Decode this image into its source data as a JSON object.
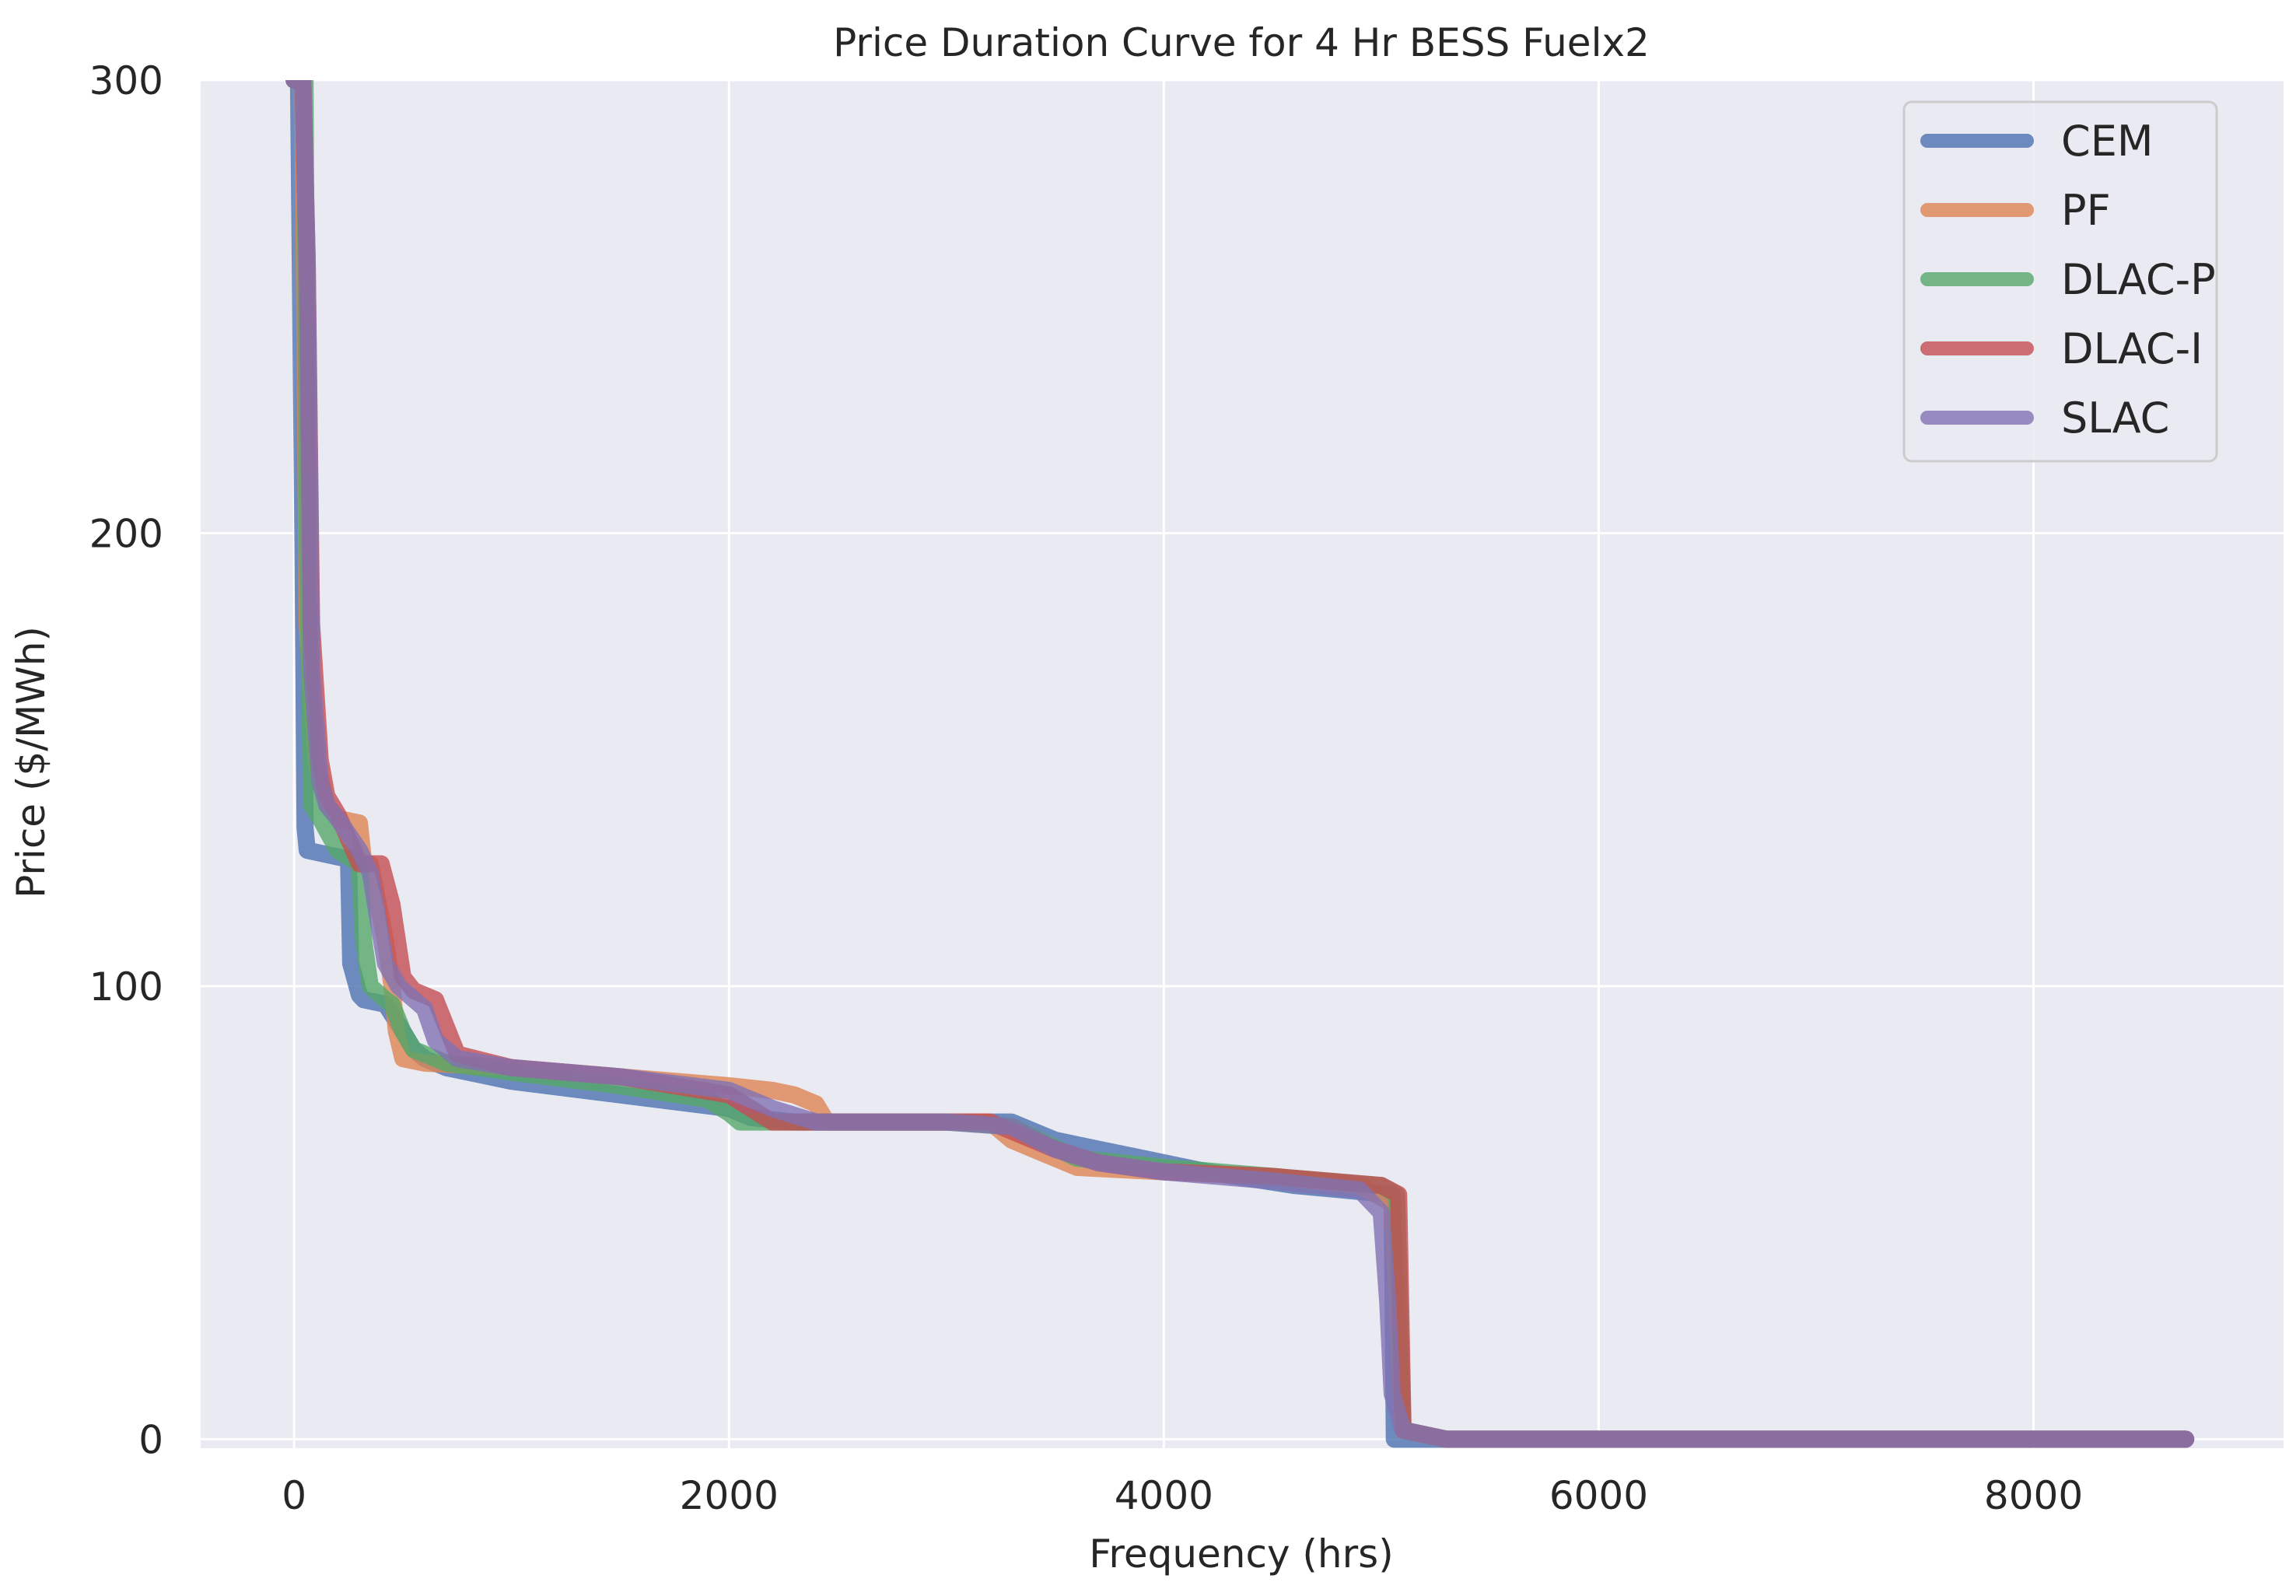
{
  "chart_data": {
    "type": "line",
    "title": "Price Duration Curve for 4 Hr BESS Fuelx2",
    "xlabel": "Frequency (hrs)",
    "ylabel": "Price ($/MWh)",
    "xlim": [
      -430,
      9150
    ],
    "ylim": [
      -2,
      300
    ],
    "xticks": [
      0,
      2000,
      4000,
      6000,
      8000
    ],
    "yticks": [
      0,
      100,
      200,
      300
    ],
    "xtick_labels": [
      "0",
      "2000",
      "4000",
      "6000",
      "8000"
    ],
    "ytick_labels": [
      "0",
      "100",
      "200",
      "300"
    ],
    "grid": true,
    "legend": "top-right",
    "series": [
      {
        "name": "CEM",
        "color": "#4c72b0",
        "x": [
          0,
          20,
          40,
          50,
          60,
          250,
          260,
          300,
          320,
          420,
          500,
          550,
          600,
          700,
          1000,
          1500,
          2000,
          2100,
          2300,
          2500,
          3000,
          3300,
          3500,
          3700,
          3900,
          4200,
          4600,
          5050,
          5060,
          5070,
          5100,
          5300,
          8700
        ],
        "values": [
          300,
          300,
          200,
          135,
          130,
          128,
          105,
          98,
          97,
          96,
          90,
          86,
          84,
          82,
          79,
          76,
          73,
          71,
          70,
          70,
          70,
          70,
          66,
          64,
          62,
          59,
          56,
          54,
          0,
          0,
          0,
          0,
          0
        ]
      },
      {
        "name": "PF",
        "color": "#dd8452",
        "x": [
          0,
          40,
          60,
          100,
          150,
          200,
          300,
          320,
          350,
          420,
          450,
          470,
          500,
          600,
          1000,
          1500,
          2000,
          2200,
          2300,
          2400,
          2450,
          3000,
          3200,
          3300,
          3400,
          3600,
          4000,
          4500,
          4900,
          5050,
          5100,
          5300,
          8700
        ],
        "values": [
          300,
          300,
          180,
          150,
          140,
          137,
          136,
          127,
          127,
          110,
          100,
          90,
          84,
          83,
          82,
          80,
          78,
          77,
          76,
          74,
          70,
          70,
          70,
          66,
          64,
          60,
          59,
          58,
          56,
          52,
          2,
          0,
          0
        ]
      },
      {
        "name": "DLAC-P",
        "color": "#55a868",
        "x": [
          0,
          50,
          60,
          80,
          120,
          200,
          300,
          320,
          350,
          420,
          450,
          500,
          550,
          700,
          1000,
          1500,
          1900,
          2000,
          2050,
          2300,
          3000,
          3300,
          3600,
          4000,
          4500,
          5000,
          5070,
          5100,
          5300,
          8700
        ],
        "values": [
          300,
          300,
          200,
          140,
          137,
          130,
          127,
          110,
          100,
          97,
          96,
          90,
          86,
          83,
          81,
          78,
          75,
          72,
          70,
          70,
          70,
          69,
          62,
          60,
          58,
          56,
          54,
          2,
          0,
          0
        ]
      },
      {
        "name": "DLAC-I",
        "color": "#c44e52",
        "x": [
          0,
          40,
          60,
          80,
          120,
          150,
          200,
          300,
          400,
          450,
          500,
          550,
          600,
          650,
          750,
          1000,
          1500,
          2000,
          2200,
          2400,
          3000,
          3200,
          3300,
          3500,
          3700,
          4000,
          4500,
          5000,
          5080,
          5100,
          5300,
          8700
        ],
        "values": [
          300,
          300,
          260,
          180,
          150,
          142,
          138,
          127,
          127,
          118,
          102,
          99,
          98,
          97,
          85,
          82,
          80,
          76,
          70,
          70,
          70,
          70,
          68,
          64,
          61,
          59,
          58,
          56,
          54,
          2,
          0,
          0
        ]
      },
      {
        "name": "SLAC",
        "color": "#8172b3",
        "x": [
          0,
          40,
          60,
          80,
          120,
          150,
          200,
          300,
          350,
          420,
          480,
          600,
          650,
          750,
          1000,
          1500,
          2000,
          2200,
          2400,
          3000,
          3300,
          3500,
          3700,
          4000,
          4500,
          4900,
          5000,
          5030,
          5050,
          5100,
          5300,
          8700
        ],
        "values": [
          300,
          300,
          260,
          170,
          145,
          140,
          137,
          130,
          125,
          105,
          100,
          95,
          88,
          84,
          82,
          80,
          77,
          73,
          70,
          70,
          69,
          64,
          61,
          59,
          57,
          55,
          50,
          30,
          10,
          2,
          0,
          0
        ]
      }
    ]
  }
}
